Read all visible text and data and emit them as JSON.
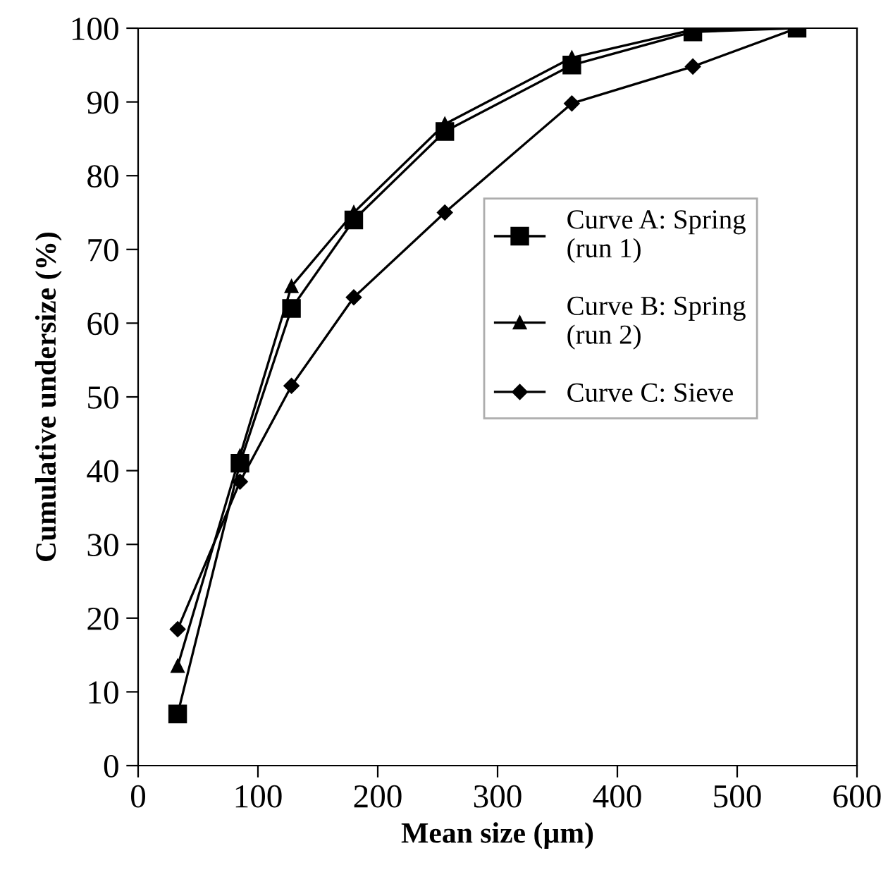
{
  "chart_data": {
    "type": "line",
    "xlabel": "Mean size (µm)",
    "ylabel": "Cumulative undersize (%)",
    "xlim": [
      0,
      600
    ],
    "ylim": [
      0,
      100
    ],
    "xticks": [
      0,
      100,
      200,
      300,
      400,
      500,
      600
    ],
    "yticks": [
      0,
      10,
      20,
      30,
      40,
      50,
      60,
      70,
      80,
      90,
      100
    ],
    "grid": false,
    "legend": "right",
    "series": [
      {
        "name": "Curve A: Spring\n(run 1)",
        "color": "#000000",
        "marker": "square",
        "x": [
          33,
          85,
          128,
          180,
          256,
          362,
          463,
          550
        ],
        "values": [
          7,
          41,
          62,
          74,
          86,
          95,
          99.5,
          100
        ]
      },
      {
        "name": "Curve B: Spring\n(run 2)",
        "color": "#000000",
        "marker": "triangle",
        "x": [
          33,
          85,
          128,
          180,
          256,
          362,
          463,
          550
        ],
        "values": [
          13.5,
          42,
          65,
          75,
          87,
          96,
          99.8,
          100
        ]
      },
      {
        "name": "Curve C: Sieve",
        "color": "#000000",
        "marker": "diamond",
        "x": [
          33,
          85,
          128,
          180,
          256,
          362,
          463,
          550
        ],
        "values": [
          18.5,
          38.5,
          51.5,
          63.5,
          75,
          89.8,
          94.8,
          100
        ]
      }
    ]
  }
}
